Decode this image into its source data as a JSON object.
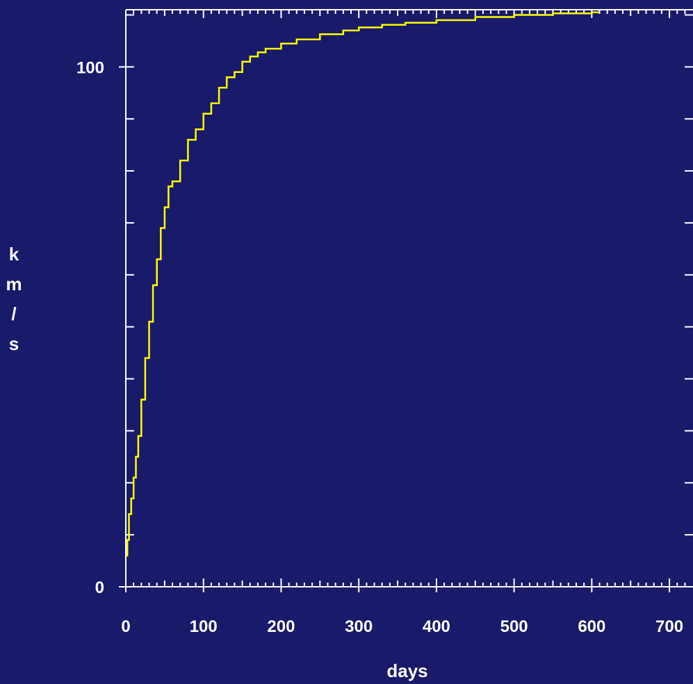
{
  "chart_data": {
    "type": "line",
    "xlabel": "days",
    "ylabel": "km/s",
    "xlim": [
      0,
      725
    ],
    "ylim": [
      0,
      111
    ],
    "x_ticks": [
      0,
      100,
      200,
      300,
      400,
      500,
      600,
      700
    ],
    "x_tick_labels": [
      "0",
      "100",
      "200",
      "300",
      "400",
      "500",
      "600",
      "700"
    ],
    "y_ticks": [
      0,
      100
    ],
    "y_tick_labels": [
      "0",
      "100"
    ],
    "grid": false,
    "colors": {
      "background": "#1a1a6b",
      "axes": "#ffffff",
      "line": "#ffff00"
    },
    "series": [
      {
        "x": [
          0,
          2,
          4,
          7,
          10,
          13,
          16,
          20,
          25,
          30,
          35,
          40,
          45,
          50,
          55,
          60,
          70,
          80,
          90,
          100,
          110,
          120,
          130,
          140,
          150,
          160,
          170,
          180,
          200,
          220,
          250,
          280,
          300,
          330,
          360,
          400,
          450,
          500,
          550,
          600,
          610
        ],
        "values": [
          6,
          9,
          14,
          17,
          21,
          25,
          29,
          36,
          44,
          51,
          58,
          63,
          69,
          73,
          77,
          78,
          82,
          86,
          88,
          91,
          93,
          96,
          98,
          99,
          101,
          102,
          102.8,
          103.5,
          104.5,
          105.3,
          106.3,
          107,
          107.6,
          108.1,
          108.5,
          109,
          109.6,
          110,
          110.3,
          110.5,
          110.5
        ]
      }
    ]
  }
}
